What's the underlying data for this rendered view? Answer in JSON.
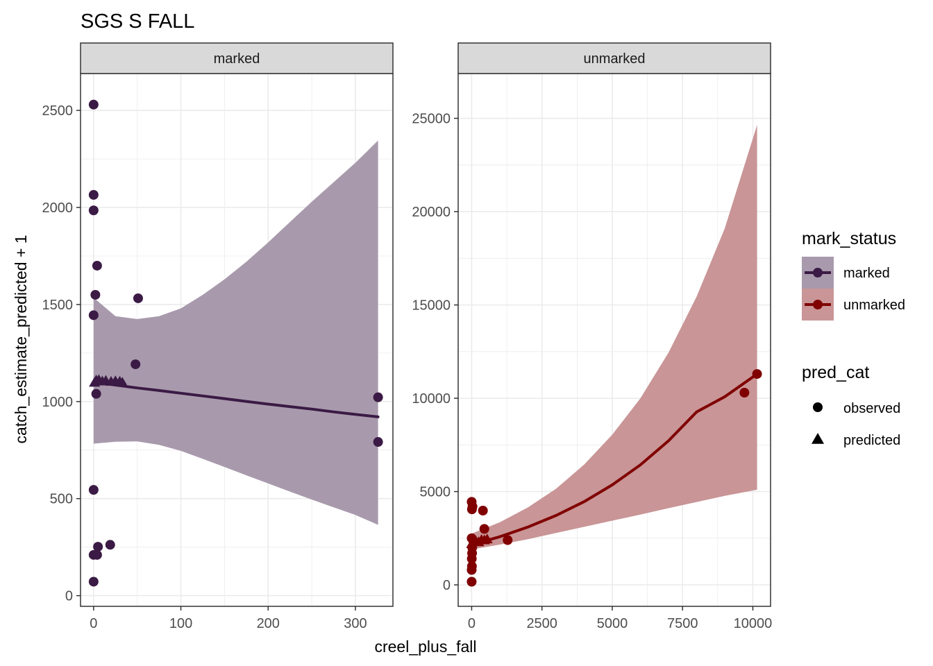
{
  "title": "SGS S FALL",
  "colors": {
    "marked": "#3b1a45",
    "unmarked": "#800000",
    "marked_ribbon": "#a89aac",
    "unmarked_ribbon": "#c99596",
    "strip_bg": "#d9d9d9",
    "grid": "#ebebeb",
    "border": "#333333"
  },
  "legend": {
    "color_title": "mark_status",
    "color_items": [
      "marked",
      "unmarked"
    ],
    "shape_title": "pred_cat",
    "shape_items": [
      "observed",
      "predicted"
    ],
    "shape_icons": [
      "circle-icon",
      "triangle-icon"
    ],
    "placement": "right"
  },
  "chart_data": [
    {
      "type": "scatter",
      "panel": "marked",
      "xlabel": "creel_plus_fall",
      "ylabel": "catch_estimate_predicted + 1",
      "xlim": [
        -15,
        343
      ],
      "ylim": [
        -55,
        2690
      ],
      "x_ticks": [
        0,
        100,
        200,
        300
      ],
      "y_ticks": [
        0,
        500,
        1000,
        1500,
        2000,
        2500
      ],
      "observed": [
        {
          "x": 0,
          "y": 2530
        },
        {
          "x": 0,
          "y": 2065
        },
        {
          "x": 0,
          "y": 1985
        },
        {
          "x": 4,
          "y": 1700
        },
        {
          "x": 2,
          "y": 1550
        },
        {
          "x": 0,
          "y": 1445
        },
        {
          "x": 51,
          "y": 1532
        },
        {
          "x": 48,
          "y": 1192
        },
        {
          "x": 3,
          "y": 1040
        },
        {
          "x": 0,
          "y": 545
        },
        {
          "x": 5,
          "y": 252
        },
        {
          "x": 19,
          "y": 262
        },
        {
          "x": 0,
          "y": 210
        },
        {
          "x": 4,
          "y": 210
        },
        {
          "x": 0,
          "y": 72
        },
        {
          "x": 326,
          "y": 1022
        },
        {
          "x": 326,
          "y": 792
        }
      ],
      "predicted": [
        {
          "x": 1,
          "y": 1098
        },
        {
          "x": 3,
          "y": 1110
        },
        {
          "x": 6,
          "y": 1112
        },
        {
          "x": 10,
          "y": 1105
        },
        {
          "x": 14,
          "y": 1108
        },
        {
          "x": 20,
          "y": 1103
        },
        {
          "x": 25,
          "y": 1106
        },
        {
          "x": 30,
          "y": 1104
        },
        {
          "x": 33,
          "y": 1098
        }
      ],
      "fit": {
        "x": [
          0,
          25,
          50,
          75,
          100,
          125,
          150,
          175,
          200,
          225,
          250,
          275,
          300,
          326
        ],
        "y": [
          1100,
          1085,
          1070,
          1057,
          1043,
          1029,
          1015,
          1001,
          987,
          974,
          961,
          947,
          934,
          921
        ],
        "lower": [
          783,
          793,
          795,
          777,
          746,
          705,
          663,
          620,
          578,
          536,
          495,
          455,
          416,
          365
        ],
        "upper": [
          1535,
          1440,
          1425,
          1440,
          1480,
          1550,
          1630,
          1720,
          1820,
          1925,
          2030,
          2130,
          2230,
          2345
        ]
      }
    },
    {
      "type": "scatter",
      "panel": "unmarked",
      "xlabel": "creel_plus_fall",
      "ylabel": "catch_estimate_predicted + 1",
      "xlim": [
        -480,
        10630
      ],
      "ylim": [
        -1150,
        27400
      ],
      "x_ticks": [
        0,
        2500,
        5000,
        7500,
        10000
      ],
      "y_ticks": [
        0,
        5000,
        10000,
        15000,
        20000,
        25000
      ],
      "observed": [
        {
          "x": 0,
          "y": 4450
        },
        {
          "x": 30,
          "y": 4200
        },
        {
          "x": 10,
          "y": 4050
        },
        {
          "x": 400,
          "y": 3980
        },
        {
          "x": 450,
          "y": 3000
        },
        {
          "x": 0,
          "y": 2500
        },
        {
          "x": 60,
          "y": 2350
        },
        {
          "x": 20,
          "y": 2000
        },
        {
          "x": 15,
          "y": 1700
        },
        {
          "x": 5,
          "y": 1400
        },
        {
          "x": 10,
          "y": 1000
        },
        {
          "x": 0,
          "y": 800
        },
        {
          "x": 0,
          "y": 170
        },
        {
          "x": 1280,
          "y": 2400
        },
        {
          "x": 9700,
          "y": 10300
        },
        {
          "x": 10150,
          "y": 11300
        }
      ],
      "predicted": [
        {
          "x": 0,
          "y": 2200
        },
        {
          "x": 150,
          "y": 2350
        },
        {
          "x": 250,
          "y": 2300
        },
        {
          "x": 350,
          "y": 2420
        },
        {
          "x": 450,
          "y": 2400
        },
        {
          "x": 550,
          "y": 2450
        }
      ],
      "fit": {
        "x": [
          0,
          1000,
          2000,
          3000,
          4000,
          5000,
          6000,
          7000,
          8000,
          9000,
          10150
        ],
        "y": [
          2150,
          2580,
          3100,
          3720,
          4460,
          5360,
          6430,
          7720,
          9270,
          10080,
          11300
        ],
        "lower": [
          1900,
          2160,
          2450,
          2780,
          3110,
          3440,
          3770,
          4110,
          4440,
          4770,
          5100
        ],
        "upper": [
          2750,
          3350,
          4150,
          5150,
          6450,
          8050,
          10000,
          12450,
          15450,
          19100,
          24650
        ]
      }
    }
  ]
}
